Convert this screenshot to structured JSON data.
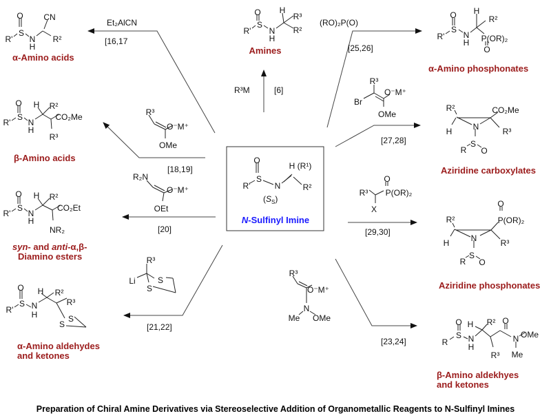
{
  "caption": "Preparation of Chiral Amine Derivatives via Stereoselective Addition of Organometallic Reagents to N-Sulfinyl Imines",
  "center": {
    "name_italic": "N",
    "name_rest": "-Sulfinyl Imine",
    "name_color": "#1a1aff",
    "atoms": [
      "O",
      "S",
      "R'",
      "N",
      "H (R¹)",
      "R²"
    ],
    "stereo_open": "(",
    "stereo_S": "S",
    "stereo_sub": "S",
    "stereo_close": ")"
  },
  "product_color": "#9b1c1c",
  "products": {
    "alpha_amino_acid": {
      "name": "α-Amino acids",
      "atoms": [
        "O",
        "S",
        "R'",
        "N",
        "H",
        "CN",
        "R²"
      ]
    },
    "amine": {
      "name": "Amines",
      "atoms": [
        "O",
        "S",
        "R'",
        "N",
        "H",
        "H",
        "R³",
        "R²"
      ]
    },
    "beta_amino_acid": {
      "name": "β-Amino acids",
      "atoms": [
        "O",
        "S",
        "R'",
        "N",
        "H",
        "H",
        "R²",
        "CO₂Me",
        "R³"
      ]
    },
    "diamino_ester": {
      "name_parts": [
        "syn",
        "- and ",
        "anti",
        "-α,β-"
      ],
      "name_line2": "Diamino esters",
      "atoms": [
        "O",
        "S",
        "R'",
        "N",
        "H",
        "H",
        "R²",
        "CO₂Et",
        "NR₂"
      ]
    },
    "dithiane_product": {
      "name_line1": "α-Amino aldehydes",
      "name_line2": "and ketones",
      "atoms": [
        "O",
        "S",
        "R'",
        "N",
        "H",
        "H",
        "R²",
        "R³",
        "S",
        "S"
      ]
    },
    "alpha_amino_phosphonate": {
      "name": "α-Amino phosphonates",
      "atoms": [
        "O",
        "S",
        "R'",
        "N",
        "H",
        "H",
        "R²",
        "P(OR)₂",
        "O"
      ]
    },
    "aziridine_carboxylate": {
      "name": "Aziridine carboxylates",
      "atoms": [
        "R²",
        "CO₂Me",
        "H",
        "N",
        "R³",
        "S",
        "R",
        "O"
      ]
    },
    "aziridine_phosphonate": {
      "name": "Aziridine phosphonates",
      "atoms": [
        "O",
        "P(OR)₂",
        "R²",
        "H",
        "N",
        "R³",
        "S",
        "R",
        "O"
      ]
    },
    "beta_amino_carbonyl": {
      "name_line1": "β-Amino aldekhyes",
      "name_line2": "and ketones",
      "atoms": [
        "O",
        "S",
        "R",
        "N",
        "H",
        "H",
        "R²",
        "O",
        "N",
        "OMe",
        "R³",
        "Me"
      ]
    }
  },
  "reactions": {
    "cyanide": {
      "reagent": "Et₂AlCN",
      "ref": "[16,17"
    },
    "grignard": {
      "reagent": "R³M",
      "ref": "[6]"
    },
    "enolate_ome": {
      "atoms": [
        "R³",
        "O⁻M⁺",
        "OMe"
      ],
      "ref": "[18,19]"
    },
    "enolate_oet": {
      "atoms": [
        "R₂N",
        "O⁻M⁺",
        "OEt"
      ],
      "ref": "[20]"
    },
    "dithiane": {
      "atoms": [
        "R³",
        "Li",
        "S",
        "S"
      ],
      "ref": "[21,22]"
    },
    "phosphite": {
      "reagent": "(RO)₂P(O)",
      "ref": "[25,26]"
    },
    "bromo_enolate": {
      "atoms": [
        "R³",
        "Br",
        "O⁻M⁺",
        "OMe"
      ],
      "ref": "[27,28]"
    },
    "phosphonate": {
      "atoms": [
        "O",
        "R³",
        "P(OR)₂",
        "X"
      ],
      "ref": "[29,30]"
    },
    "weinreb": {
      "atoms": [
        "R³",
        "O⁻M⁺",
        "N",
        "Me",
        "OMe"
      ],
      "ref": "[23,24]"
    }
  }
}
